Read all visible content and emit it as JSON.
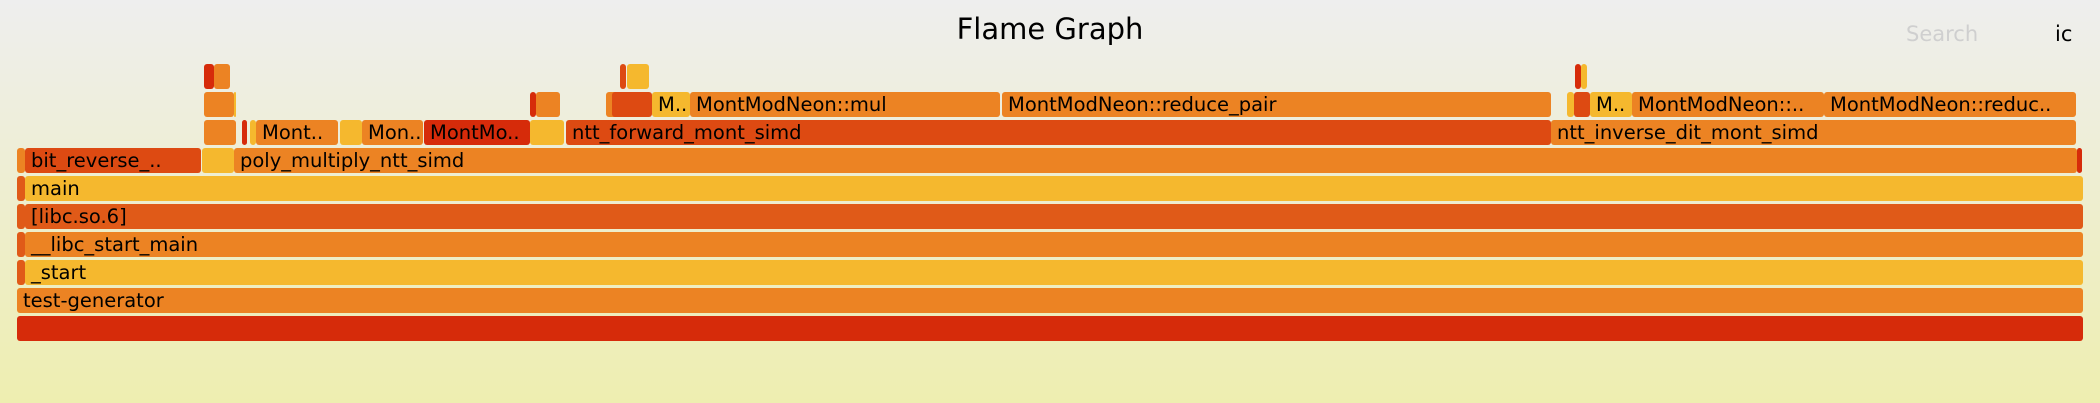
{
  "header": {
    "title": "Flame Graph",
    "search_label": "Search",
    "ic_label": "ic"
  },
  "flames": [
    {
      "label": "",
      "color": "#d62b0a",
      "level": 0
    },
    {
      "label": "test-generator",
      "color": "#ec8323",
      "level": 1
    },
    {
      "label": "",
      "color": "#e05a18",
      "level": 2
    },
    {
      "label": "_start",
      "color": "#f5b82e",
      "level": 2
    },
    {
      "label": "",
      "color": "#e05a18",
      "level": 3
    },
    {
      "label": "__libc_start_main",
      "color": "#ec8323",
      "level": 3
    },
    {
      "label": "",
      "color": "#e05a18",
      "level": 4
    },
    {
      "label": "[libc.so.6]",
      "color": "#e05a18",
      "level": 4
    },
    {
      "label": "",
      "color": "#e05a18",
      "level": 5
    },
    {
      "label": "main",
      "color": "#f5b82e",
      "level": 5
    },
    {
      "label": "",
      "color": "#ec8323",
      "level": 6
    },
    {
      "label": "bit_reverse_..",
      "color": "#dd4a12",
      "level": 6
    },
    {
      "label": "",
      "color": "#f5b82e",
      "level": 6
    },
    {
      "label": "poly_multiply_ntt_simd",
      "color": "#ec8323",
      "level": 6
    },
    {
      "label": "",
      "color": "#d62b0a",
      "level": 6
    },
    {
      "label": "",
      "color": "#ec8323",
      "level": 7
    },
    {
      "label": "",
      "color": "#d62b0a",
      "level": 7
    },
    {
      "label": "",
      "color": "#f5b82e",
      "level": 7
    },
    {
      "label": "Mont..",
      "color": "#ec8323",
      "level": 7
    },
    {
      "label": "",
      "color": "#f5b82e",
      "level": 7
    },
    {
      "label": "Mon..",
      "color": "#ec8323",
      "level": 7
    },
    {
      "label": "MontMo..",
      "color": "#d62b0a",
      "level": 7
    },
    {
      "label": "",
      "color": "#f5b82e",
      "level": 7
    },
    {
      "label": "ntt_forward_mont_simd",
      "color": "#dd4a12",
      "level": 7
    },
    {
      "label": "ntt_inverse_dit_mont_simd",
      "color": "#ec8323",
      "level": 7
    },
    {
      "label": "",
      "color": "#ec8323",
      "level": 8
    },
    {
      "label": "",
      "color": "#f5b82e",
      "level": 8
    },
    {
      "label": "",
      "color": "#d62b0a",
      "level": 8
    },
    {
      "label": "",
      "color": "#ec8323",
      "level": 8
    },
    {
      "label": "",
      "color": "#ec8323",
      "level": 8
    },
    {
      "label": "",
      "color": "#dd4a12",
      "level": 8
    },
    {
      "label": "M..",
      "color": "#f5b82e",
      "level": 8
    },
    {
      "label": "MontModNeon::mul",
      "color": "#ec8323",
      "level": 8
    },
    {
      "label": "MontModNeon::reduce_pair",
      "color": "#ec8323",
      "level": 8
    },
    {
      "label": "",
      "color": "#f5b82e",
      "level": 8
    },
    {
      "label": "",
      "color": "#dd4a12",
      "level": 8
    },
    {
      "label": "M..",
      "color": "#f5b82e",
      "level": 8
    },
    {
      "label": "MontModNeon::..",
      "color": "#ec8323",
      "level": 8
    },
    {
      "label": "MontModNeon::reduc..",
      "color": "#ec8323",
      "level": 8
    },
    {
      "label": "",
      "color": "#d62b0a",
      "level": 9
    },
    {
      "label": "",
      "color": "#ec8323",
      "level": 9
    },
    {
      "label": "",
      "color": "#dd4a12",
      "level": 9
    },
    {
      "label": "",
      "color": "#f5b82e",
      "level": 9
    },
    {
      "label": "",
      "color": "#d62b0a",
      "level": 9
    },
    {
      "label": "",
      "color": "#f5b82e",
      "level": 9
    }
  ]
}
